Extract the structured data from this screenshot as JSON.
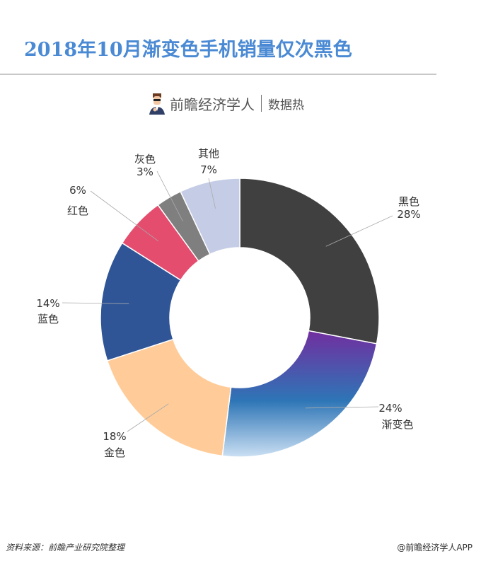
{
  "header": {
    "title": "2018年10月渐变色手机销量仅次黑色",
    "brand_name": "前瞻经济学人",
    "brand_sub": "数据热"
  },
  "chart_data": {
    "type": "pie",
    "variant": "donut",
    "title": "2018年10月渐变色手机销量仅次黑色",
    "unit": "%",
    "start": "12 o'clock, clockwise",
    "slices": [
      {
        "name": "黑色",
        "value": 28,
        "label": "28%",
        "color": "#404040"
      },
      {
        "name": "渐变色",
        "value": 24,
        "label": "24%",
        "color": "gradient:#7030a0-#2e75b6-#bdd7ee"
      },
      {
        "name": "金色",
        "value": 18,
        "label": "18%",
        "color": "#ffcc99"
      },
      {
        "name": "蓝色",
        "value": 14,
        "label": "14%",
        "color": "#2f5597"
      },
      {
        "name": "红色",
        "value": 6,
        "label": "6%",
        "color": "#e44d6e"
      },
      {
        "name": "灰色",
        "value": 3,
        "label": "3%",
        "color": "#7f7f7f"
      },
      {
        "name": "其他",
        "value": 7,
        "label": "7%",
        "color": "#c5cde6"
      }
    ]
  },
  "footer": {
    "source": "资料来源：前瞻产业研究院整理",
    "credit": "@前瞻经济学人APP"
  }
}
